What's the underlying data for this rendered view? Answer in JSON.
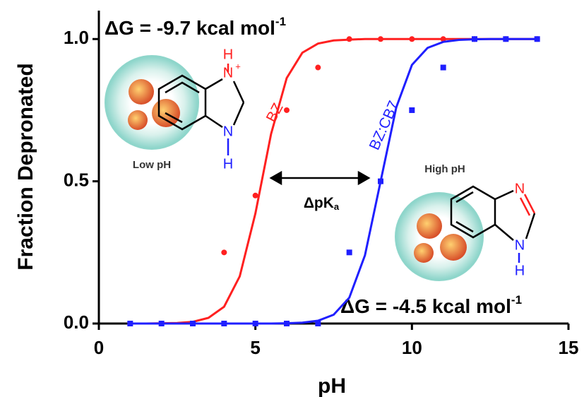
{
  "chart_data": {
    "type": "scatter",
    "x_label": "pH",
    "y_label": "Fraction Depronated",
    "x": [
      1,
      2,
      3,
      4,
      5,
      6,
      7,
      8,
      9,
      10,
      11,
      12,
      13,
      14
    ],
    "curve_x": [
      1,
      1.5,
      2,
      2.5,
      3,
      3.5,
      4,
      4.5,
      5,
      5.5,
      6,
      6.5,
      7,
      7.5,
      8,
      8.5,
      9,
      9.5,
      10,
      10.5,
      11,
      11.5,
      12,
      12.5,
      13,
      13.5,
      14
    ],
    "series": [
      {
        "name": "BZ",
        "color": "#ff2020",
        "marker": "circle",
        "values": [
          0,
          0,
          0,
          0.25,
          0.45,
          0.75,
          0.9,
          1.0,
          1.0,
          1.0,
          1.0,
          1.0,
          1.0,
          1.0
        ],
        "curve": [
          0,
          0,
          0.001,
          0.002,
          0.006,
          0.02,
          0.059,
          0.166,
          0.387,
          0.666,
          0.863,
          0.952,
          0.984,
          0.995,
          0.998,
          1.0,
          1.0,
          1.0,
          1.0,
          1.0,
          1.0,
          1.0,
          1.0,
          1.0,
          1.0,
          1.0,
          1.0
        ]
      },
      {
        "name": "BZ:CB7",
        "color": "#1f1fff",
        "marker": "square",
        "values": [
          0,
          0,
          0,
          0,
          0,
          0,
          0,
          0.25,
          0.5,
          0.75,
          0.9,
          1.0,
          1.0,
          1.0
        ],
        "curve": [
          0,
          0,
          0,
          0,
          0,
          0,
          0,
          0,
          0,
          0,
          0.001,
          0.003,
          0.01,
          0.031,
          0.091,
          0.24,
          0.5,
          0.76,
          0.909,
          0.969,
          0.99,
          0.997,
          0.999,
          1.0,
          1.0,
          1.0,
          1.0
        ]
      }
    ],
    "xlim": [
      0,
      15
    ],
    "xticks": [
      0,
      5,
      10,
      15
    ],
    "ylim": [
      0,
      1.1
    ],
    "yticks": [
      {
        "value": 0,
        "label": "0.0"
      },
      0.5,
      {
        "value": 1,
        "label": "1.0"
      }
    ],
    "annotations": {
      "dg_bz": {
        "text": "ΔG = -9.7 kcal mol",
        "sup": "-1"
      },
      "dg_cb7": {
        "text": "ΔG = -4.5 kcal mol",
        "sup": "-1"
      },
      "dpka": {
        "text": "ΔpK",
        "sub": "a"
      },
      "low_ph": "Low pH",
      "high_ph": "High pH",
      "low_atoms": [
        "H",
        "N",
        "+",
        "N",
        "H"
      ],
      "high_atoms": [
        "N",
        "N",
        "H"
      ]
    }
  }
}
